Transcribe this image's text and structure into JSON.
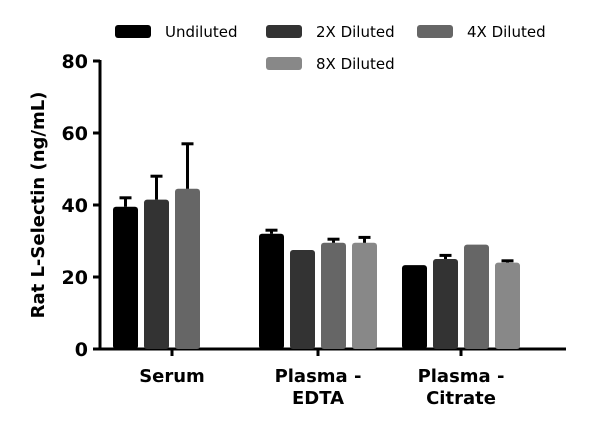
{
  "chart_data": {
    "type": "bar",
    "title": "",
    "xlabel": "",
    "ylabel": "Rat L-Selectin (ng/mL)",
    "ylim": [
      0,
      80
    ],
    "yticks": [
      0,
      20,
      40,
      60,
      80
    ],
    "grid": false,
    "legend_position": "top",
    "categories": [
      [
        "Serum"
      ],
      [
        "Plasma -",
        "EDTA"
      ],
      [
        "Plasma -",
        "Citrate"
      ]
    ],
    "series": [
      {
        "name": "Undiluted",
        "color": "#000000",
        "values": [
          39.5,
          32,
          23.3
        ],
        "errors": [
          2.5,
          1,
          0
        ]
      },
      {
        "name": "2X Diluted",
        "color": "#333333",
        "values": [
          41.5,
          27.5,
          25
        ],
        "errors": [
          6.5,
          0,
          1
        ]
      },
      {
        "name": "4X Diluted",
        "color": "#666666",
        "values": [
          44.5,
          29.5,
          29
        ],
        "errors": [
          12.5,
          1,
          0
        ]
      },
      {
        "name": "8X Diluted",
        "color": "#888888",
        "values": [
          null,
          29.5,
          24
        ],
        "errors": [
          null,
          1.5,
          0.5
        ]
      }
    ]
  }
}
